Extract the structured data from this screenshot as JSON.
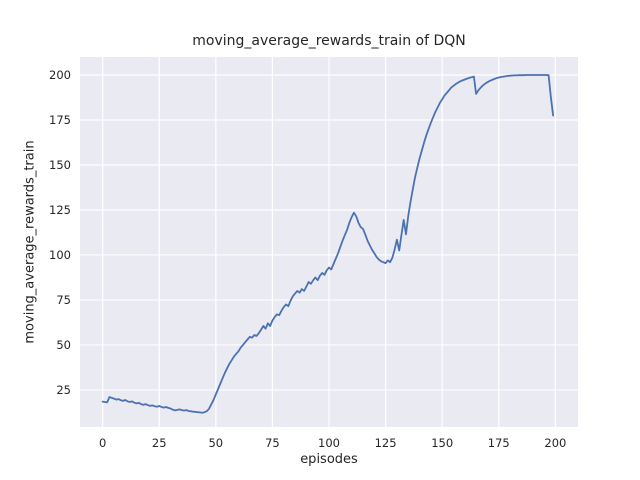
{
  "chart_data": {
    "type": "line",
    "title": "moving_average_rewards_train of DQN",
    "xlabel": "episodes",
    "ylabel": "moving_average_rewards_train",
    "xticks": [
      0,
      25,
      50,
      75,
      100,
      125,
      150,
      175,
      200
    ],
    "yticks": [
      25,
      50,
      75,
      100,
      125,
      150,
      175,
      200
    ],
    "xlim": [
      -10,
      210
    ],
    "ylim": [
      4.4,
      210
    ],
    "grid": true,
    "legend": false,
    "plot_bg": "#EAEAF2",
    "grid_color": "#FFFFFF",
    "figure_bg": "#FFFFFF",
    "text_color": "#262626",
    "x": [
      0,
      1,
      2,
      3,
      4,
      5,
      6,
      7,
      8,
      9,
      10,
      11,
      12,
      13,
      14,
      15,
      16,
      17,
      18,
      19,
      20,
      21,
      22,
      23,
      24,
      25,
      26,
      27,
      28,
      29,
      30,
      31,
      32,
      33,
      34,
      35,
      36,
      37,
      38,
      39,
      40,
      41,
      42,
      43,
      44,
      45,
      46,
      47,
      48,
      49,
      50,
      51,
      52,
      53,
      54,
      55,
      56,
      57,
      58,
      59,
      60,
      61,
      62,
      63,
      64,
      65,
      66,
      67,
      68,
      69,
      70,
      71,
      72,
      73,
      74,
      75,
      76,
      77,
      78,
      79,
      80,
      81,
      82,
      83,
      84,
      85,
      86,
      87,
      88,
      89,
      90,
      91,
      92,
      93,
      94,
      95,
      96,
      97,
      98,
      99,
      100,
      101,
      102,
      103,
      104,
      105,
      106,
      107,
      108,
      109,
      110,
      111,
      112,
      113,
      114,
      115,
      116,
      117,
      118,
      119,
      120,
      121,
      122,
      123,
      124,
      125,
      126,
      127,
      128,
      129,
      130,
      131,
      132,
      133,
      134,
      135,
      136,
      137,
      138,
      139,
      140,
      141,
      142,
      143,
      144,
      145,
      146,
      147,
      148,
      149,
      150,
      151,
      152,
      153,
      154,
      155,
      156,
      157,
      158,
      159,
      160,
      161,
      162,
      163,
      164,
      165,
      166,
      167,
      168,
      169,
      170,
      171,
      172,
      173,
      174,
      175,
      176,
      177,
      178,
      179,
      180,
      181,
      182,
      183,
      184,
      185,
      186,
      187,
      188,
      189,
      190,
      191,
      192,
      193,
      194,
      195,
      196,
      197,
      198,
      199
    ],
    "series": [
      {
        "name": "moving_average_rewards_train",
        "color": "#4C72B0",
        "values": [
          18.5,
          18.3,
          18.1,
          21.0,
          20.6,
          20.2,
          19.6,
          19.9,
          19.3,
          18.9,
          19.4,
          18.7,
          18.3,
          18.6,
          17.9,
          17.5,
          17.8,
          17.1,
          16.7,
          17.1,
          16.5,
          16.1,
          16.4,
          15.9,
          15.6,
          16.1,
          15.5,
          15.2,
          15.5,
          15.0,
          14.7,
          14.0,
          13.6,
          13.9,
          14.2,
          13.8,
          13.5,
          13.8,
          13.3,
          13.1,
          12.9,
          12.8,
          12.6,
          12.5,
          12.3,
          12.6,
          13.2,
          14.5,
          17.0,
          19.5,
          22.5,
          25.5,
          28.5,
          31.5,
          34.5,
          37.0,
          39.5,
          41.5,
          43.5,
          45.0,
          46.5,
          48.5,
          50.0,
          51.5,
          53.0,
          54.5,
          54.0,
          55.5,
          55.0,
          56.5,
          58.5,
          60.5,
          59.0,
          62.0,
          60.5,
          63.5,
          65.5,
          67.0,
          66.5,
          69.0,
          71.0,
          72.5,
          71.5,
          74.5,
          77.0,
          78.5,
          80.0,
          79.0,
          81.0,
          80.0,
          82.5,
          85.0,
          84.0,
          86.0,
          87.5,
          86.0,
          88.5,
          90.0,
          89.0,
          91.5,
          93.0,
          92.0,
          95.0,
          98.0,
          101.0,
          104.5,
          108.0,
          111.0,
          114.0,
          118.0,
          121.0,
          123.5,
          121.5,
          118.0,
          115.5,
          114.5,
          111.5,
          108.0,
          105.5,
          103.0,
          101.0,
          99.0,
          97.5,
          96.5,
          96.0,
          95.5,
          97.0,
          96.0,
          98.5,
          103.0,
          108.5,
          102.5,
          111.0,
          119.5,
          111.5,
          121.5,
          129.5,
          136.5,
          143.0,
          148.5,
          153.5,
          158.0,
          162.5,
          166.5,
          170.0,
          173.5,
          176.5,
          179.5,
          182.0,
          184.5,
          186.5,
          188.5,
          190.0,
          191.5,
          193.0,
          194.0,
          195.0,
          195.8,
          196.5,
          197.0,
          197.5,
          198.0,
          198.4,
          198.8,
          199.1,
          189.5,
          191.5,
          193.0,
          194.2,
          195.2,
          196.0,
          196.7,
          197.3,
          197.8,
          198.2,
          198.6,
          198.9,
          199.1,
          199.3,
          199.5,
          199.6,
          199.7,
          199.8,
          199.8,
          199.9,
          199.9,
          199.9,
          200.0,
          200.0,
          200.0,
          200.0,
          200.0,
          200.0,
          200.0,
          200.0,
          200.0,
          200.0,
          199.9,
          188.0,
          177.5
        ]
      }
    ]
  }
}
